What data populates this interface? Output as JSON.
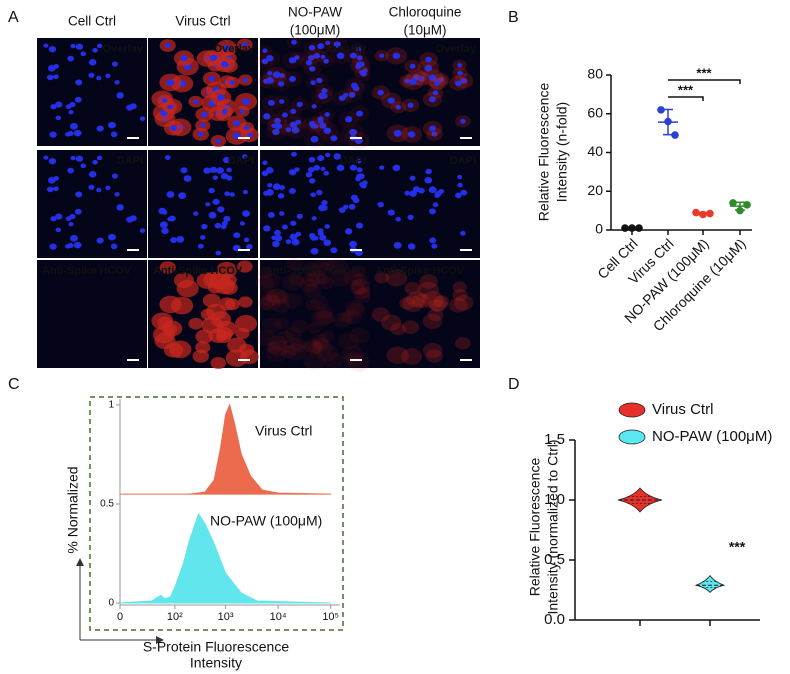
{
  "panel_labels": [
    "A",
    "B",
    "C",
    "D"
  ],
  "microscopy": {
    "columns": [
      [
        "Cell Ctrl"
      ],
      [
        "Virus Ctrl"
      ],
      [
        "NO-PAW",
        "(100μM)"
      ],
      [
        "Chloroquine",
        "(10μM)"
      ]
    ],
    "rows": [
      {
        "label": "Overlay",
        "color": "#f2e428"
      },
      {
        "label": "DAPI",
        "color": "#3a56c9"
      },
      {
        "label": "Anti-Spike HCOV",
        "color": "#e8251c"
      }
    ]
  },
  "chart_data": [
    {
      "type": "dot",
      "ylabel": [
        "Relative Fluorescence",
        "Intensity (n-fold)"
      ],
      "ylim": [
        0,
        80
      ],
      "yticks": [
        0,
        20,
        40,
        60,
        80
      ],
      "series": [
        {
          "name": "Cell Ctrl",
          "color": "#111111",
          "values": [
            1,
            1,
            1
          ],
          "mean": 1,
          "error": 0.3
        },
        {
          "name": "Virus Ctrl",
          "color": "#2a3fd6",
          "values": [
            62,
            56,
            49
          ],
          "mean": 55.7,
          "error": 6.5
        },
        {
          "name": "NO-PAW (100μM)",
          "color": "#e8392c",
          "values": [
            9,
            8,
            8.5
          ],
          "mean": 8.5,
          "error": 0.6
        },
        {
          "name": "Chloroquine (10μM)",
          "color": "#2f8a2a",
          "values": [
            14,
            10,
            13
          ],
          "mean": 12.3,
          "error": 2
        }
      ],
      "annotations": [
        "***",
        "***"
      ]
    },
    {
      "type": "density",
      "ylabel": "% Normalized",
      "xlabel": [
        "S-Protein Fluorescence",
        "Intensity"
      ],
      "xlim": [
        0,
        150000
      ],
      "xticks": [
        0,
        {
          "value": 100,
          "label": "10²"
        },
        {
          "value": 1000,
          "label": "10³"
        },
        {
          "value": 10000,
          "label": "10⁴"
        },
        {
          "value": 100000,
          "label": "10⁵"
        }
      ],
      "ylim": [
        0,
        1.03
      ],
      "yticks": [
        0,
        0.5,
        1
      ],
      "series": [
        {
          "name": "Virus Ctrl",
          "color": "#ec6a4d",
          "x": [
            0,
            200,
            400,
            600,
            800,
            1000,
            1200,
            1500,
            2000,
            3000,
            5000,
            10000,
            100000
          ],
          "values": [
            0.55,
            0.55,
            0.56,
            0.62,
            0.78,
            0.95,
            1.0,
            0.9,
            0.75,
            0.64,
            0.57,
            0.555,
            0.55
          ]
        },
        {
          "name": "NO-PAW (100μM)",
          "color": "#62e6ee",
          "x": [
            0,
            30,
            50,
            60,
            80,
            100,
            150,
            200,
            300,
            400,
            600,
            1000,
            2000,
            4000,
            100000
          ],
          "values": [
            0,
            0.01,
            0.04,
            0.02,
            0.03,
            0.08,
            0.2,
            0.32,
            0.45,
            0.4,
            0.3,
            0.15,
            0.05,
            0.01,
            0
          ]
        }
      ]
    },
    {
      "type": "violin",
      "ylabel": [
        "Relative Fluorescence",
        "Intensity (normalized to Ctrl)"
      ],
      "ylim": [
        0,
        1.5
      ],
      "yticks": [
        {
          "value": 0,
          "label": "0.0"
        },
        0.5,
        {
          "value": 1,
          "label": "1.0"
        },
        1.5
      ],
      "series": [
        {
          "name": "Virus Ctrl",
          "color": "#e8302a",
          "min": 0.9,
          "q1": 0.97,
          "median": 1.0,
          "q3": 1.03,
          "max": 1.1
        },
        {
          "name": "NO-PAW (100μM)",
          "color": "#5ce8f0",
          "min": 0.23,
          "q1": 0.27,
          "median": 0.29,
          "q3": 0.32,
          "max": 0.37
        }
      ],
      "annotations": [
        "***"
      ]
    }
  ]
}
